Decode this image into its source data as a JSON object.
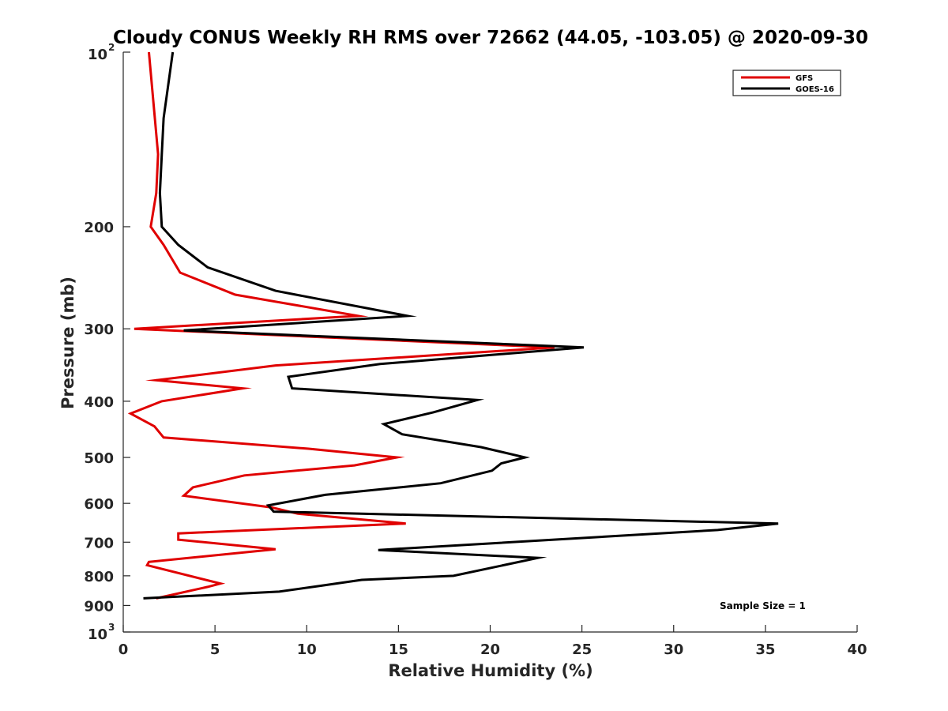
{
  "chart_data": {
    "type": "line",
    "title": "Cloudy CONUS Weekly RH RMS over 72662 (44.05, -103.05) @ 2020-09-30",
    "xlabel": "Relative Humidity (%)",
    "ylabel": "Pressure (mb)",
    "xlim": [
      0,
      40
    ],
    "ylim": [
      100,
      1000
    ],
    "y_scale": "log",
    "y_reversed": true,
    "grid": false,
    "legend_position": "top-right",
    "x_ticks": [
      0,
      5,
      10,
      15,
      20,
      25,
      30,
      35,
      40
    ],
    "y_ticks": [
      {
        "value": 100,
        "base": "10",
        "exp": "2"
      },
      {
        "value": 200,
        "label": "200"
      },
      {
        "value": 300,
        "label": "300"
      },
      {
        "value": 400,
        "label": "400"
      },
      {
        "value": 500,
        "label": "500"
      },
      {
        "value": 600,
        "label": "600"
      },
      {
        "value": 700,
        "label": "700"
      },
      {
        "value": 800,
        "label": "800"
      },
      {
        "value": 900,
        "label": "900"
      },
      {
        "value": 1000,
        "base": "10",
        "exp": "3"
      }
    ],
    "annotation": "Sample Size = 1",
    "series": [
      {
        "name": "GFS",
        "color": "#e00000",
        "points": [
          [
            1.4,
            100
          ],
          [
            1.9,
            150
          ],
          [
            1.8,
            175
          ],
          [
            1.5,
            200
          ],
          [
            2.2,
            215
          ],
          [
            3.1,
            240
          ],
          [
            6.1,
            262
          ],
          [
            12.8,
            285
          ],
          [
            0.6,
            300
          ],
          [
            23.5,
            323
          ],
          [
            8.3,
            347
          ],
          [
            1.8,
            368
          ],
          [
            6.5,
            380
          ],
          [
            2.1,
            400
          ],
          [
            0.4,
            420
          ],
          [
            1.7,
            442
          ],
          [
            2.2,
            462
          ],
          [
            10.1,
            483
          ],
          [
            14.9,
            500
          ],
          [
            12.6,
            516
          ],
          [
            6.6,
            537
          ],
          [
            3.8,
            563
          ],
          [
            3.3,
            582
          ],
          [
            8.1,
            610
          ],
          [
            9.5,
            625
          ],
          [
            15.4,
            650
          ],
          [
            3.0,
            676
          ],
          [
            3.0,
            693
          ],
          [
            8.3,
            720
          ],
          [
            1.4,
            757
          ],
          [
            1.3,
            767
          ],
          [
            5.3,
            825
          ],
          [
            4.6,
            836
          ],
          [
            1.8,
            875
          ]
        ]
      },
      {
        "name": "GOES-16",
        "color": "#000000",
        "points": [
          [
            2.7,
            100
          ],
          [
            2.2,
            130
          ],
          [
            2.1,
            150
          ],
          [
            2.0,
            175
          ],
          [
            2.1,
            200
          ],
          [
            3.0,
            215
          ],
          [
            4.6,
            235
          ],
          [
            8.3,
            258
          ],
          [
            15.5,
            285
          ],
          [
            3.3,
            302
          ],
          [
            25.1,
            323
          ],
          [
            14.0,
            345
          ],
          [
            9.0,
            363
          ],
          [
            9.2,
            380
          ],
          [
            19.3,
            398
          ],
          [
            16.9,
            418
          ],
          [
            14.2,
            438
          ],
          [
            15.2,
            456
          ],
          [
            19.5,
            480
          ],
          [
            21.9,
            500
          ],
          [
            20.6,
            512
          ],
          [
            20.1,
            527
          ],
          [
            17.3,
            554
          ],
          [
            11.0,
            580
          ],
          [
            7.9,
            605
          ],
          [
            8.2,
            620
          ],
          [
            35.7,
            650
          ],
          [
            32.4,
            667
          ],
          [
            13.9,
            722
          ],
          [
            22.6,
            745
          ],
          [
            18.0,
            800
          ],
          [
            13.0,
            813
          ],
          [
            10.8,
            832
          ],
          [
            8.5,
            852
          ],
          [
            1.1,
            875
          ]
        ]
      }
    ]
  }
}
